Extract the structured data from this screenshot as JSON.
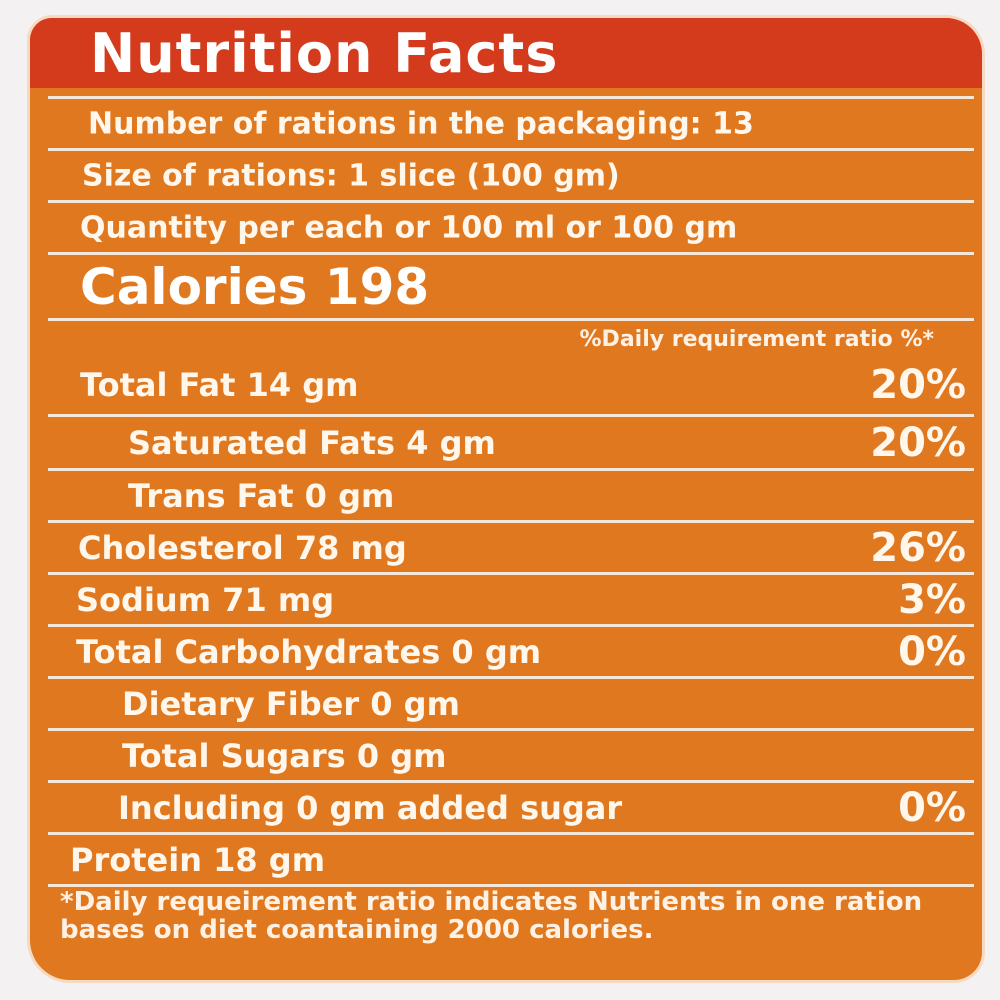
{
  "title": "Nutrition Facts",
  "rows": [
    {
      "label": "Number of rations in the packaging: 13",
      "pct": ""
    },
    {
      "label": "Size of rations: 1 slice (100 gm)",
      "pct": ""
    },
    {
      "label": "Quantity per each or 100 ml or 100 gm",
      "pct": ""
    },
    {
      "label": "Calories 198",
      "pct": ""
    },
    {
      "label": "Total Fat 14 gm",
      "pct": "20%"
    },
    {
      "label": "Saturated Fats 4 gm",
      "pct": "20%"
    },
    {
      "label": "Trans Fat 0 gm",
      "pct": ""
    },
    {
      "label": "Cholesterol 78 mg",
      "pct": "26%"
    },
    {
      "label": "Sodium 71 mg",
      "pct": "3%"
    },
    {
      "label": "Total Carbohydrates 0 gm",
      "pct": "0%"
    },
    {
      "label": "Dietary Fiber 0 gm",
      "pct": ""
    },
    {
      "label": "Total Sugars 0 gm",
      "pct": ""
    },
    {
      "label": "Including 0 gm added sugar",
      "pct": "0%"
    },
    {
      "label": "Protein 18 gm",
      "pct": ""
    }
  ],
  "dv_header": "%Daily requirement ratio %*",
  "footnote": "*Daily requeirement ratio indicates Nutrients in one ration bases on diet coantaining 2000 calories."
}
